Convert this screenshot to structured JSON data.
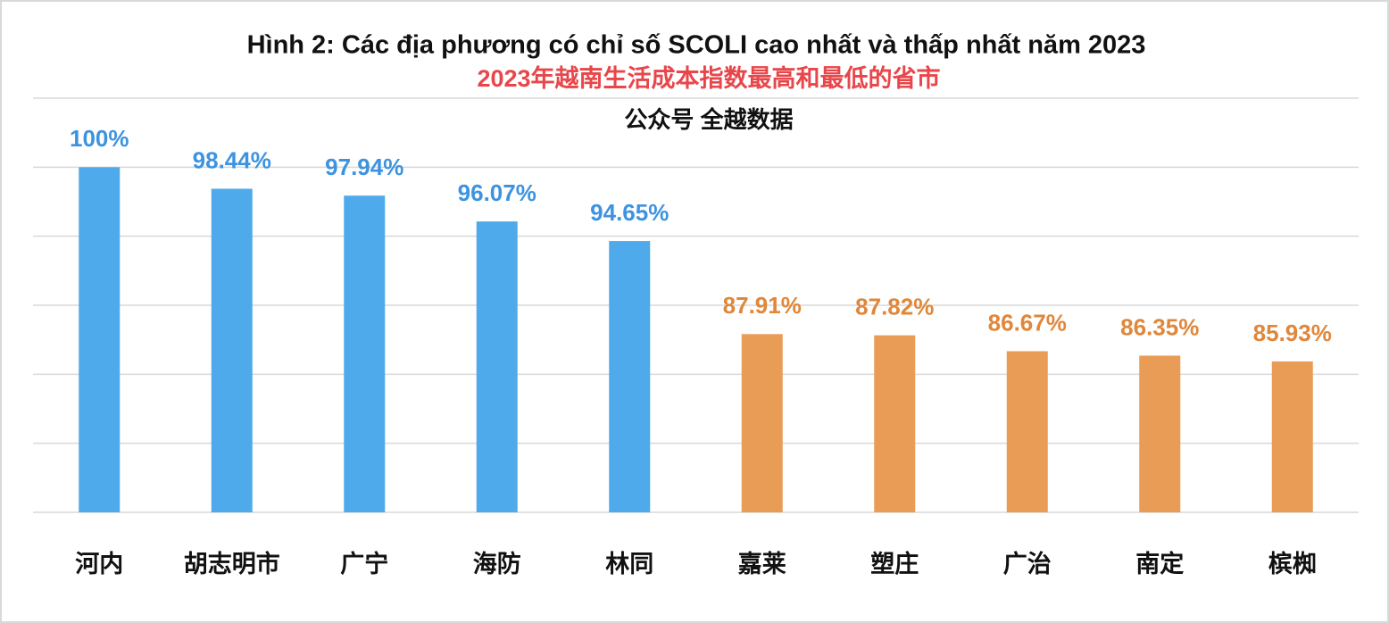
{
  "chart_data": {
    "type": "bar",
    "title": "Hình 2: Các địa phương có chỉ số SCOLI cao nhất và thấp nhất năm 2023",
    "subtitle": "2023年越南生活成本指数最高和最低的省市",
    "annotation": "公众号 全越数据",
    "categories": [
      "河内",
      "胡志明市",
      "广宁",
      "海防",
      "林同",
      "嘉莱",
      "塑庄",
      "广治",
      "南定",
      "槟椥"
    ],
    "values": [
      100,
      98.44,
      97.94,
      96.07,
      94.65,
      87.91,
      87.82,
      86.67,
      86.35,
      85.93
    ],
    "value_labels": [
      "100%",
      "98.44%",
      "97.94%",
      "96.07%",
      "94.65%",
      "87.91%",
      "87.82%",
      "86.67%",
      "86.35%",
      "85.93%"
    ],
    "colors": [
      "#4eaaea",
      "#4eaaea",
      "#4eaaea",
      "#4eaaea",
      "#4eaaea",
      "#e99c55",
      "#e99c55",
      "#e99c55",
      "#e99c55",
      "#e99c55"
    ],
    "label_colors": [
      "#3d93e0",
      "#3d93e0",
      "#3d93e0",
      "#3d93e0",
      "#3d93e0",
      "#e0873a",
      "#e0873a",
      "#e0873a",
      "#e0873a",
      "#e0873a"
    ],
    "ylim": [
      75,
      105
    ],
    "yticks": [
      75,
      80,
      85,
      90,
      95,
      100,
      105
    ],
    "grid": true
  }
}
